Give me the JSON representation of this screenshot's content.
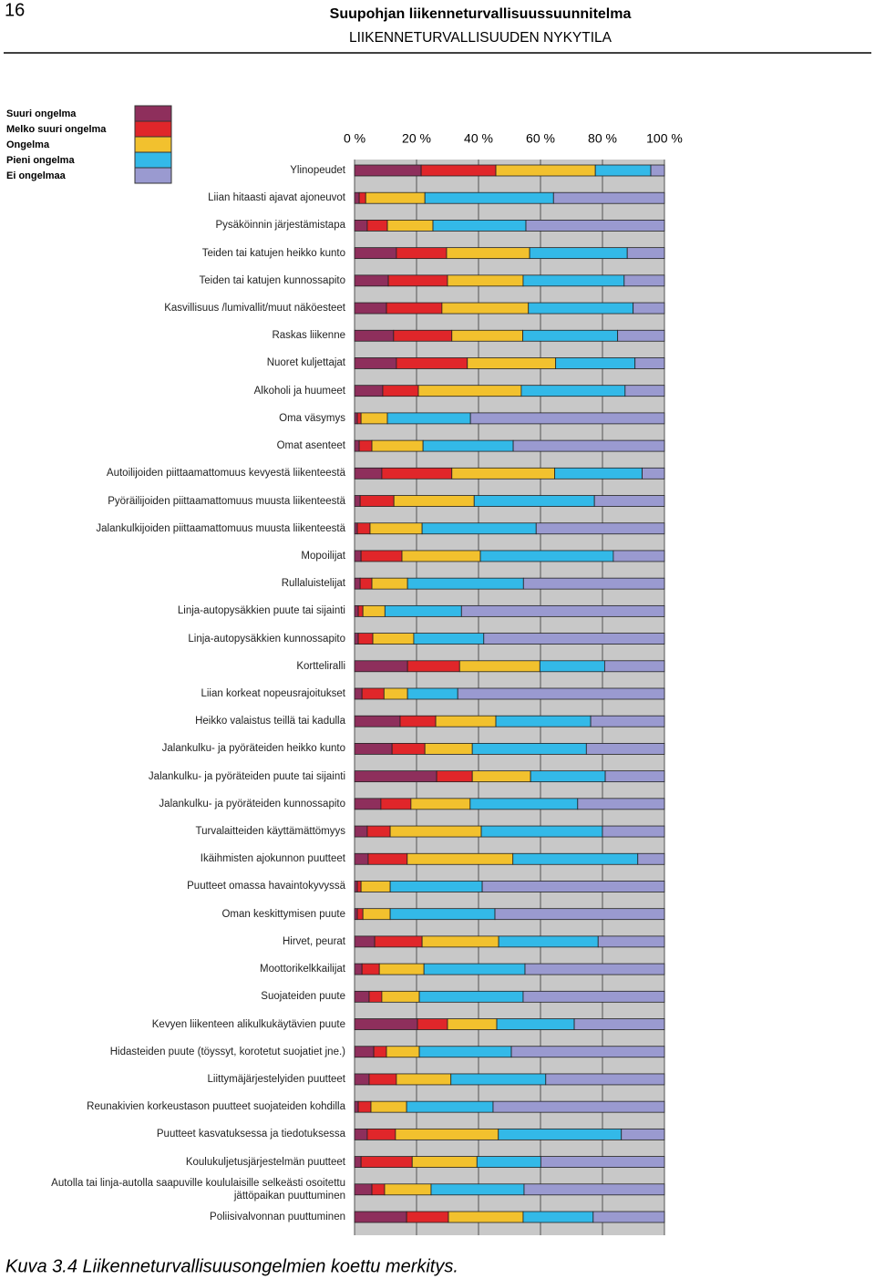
{
  "header": {
    "page_number": "16",
    "title": "Suupohjan liikenneturvallisuussuunnitelma",
    "subtitle": "LIIKENNETURVALLISUUDEN NYKYTILA"
  },
  "caption": "Kuva 3.4 Liikenneturvallisuusongelmien koettu merkitys.",
  "chart_data": {
    "type": "stacked_bar_horizontal",
    "xlim": [
      0,
      100
    ],
    "xticks": [
      {
        "value": 0,
        "label": "0 %"
      },
      {
        "value": 20,
        "label": "20 %"
      },
      {
        "value": 40,
        "label": "40 %"
      },
      {
        "value": 60,
        "label": "60 %"
      },
      {
        "value": 80,
        "label": "80 %"
      },
      {
        "value": 100,
        "label": "100 %"
      }
    ],
    "grid": true,
    "legend": "top-left",
    "categories": [
      "Ylinopeudet",
      "Liian hitaasti ajavat ajoneuvot",
      "Pysäköinnin järjestämistapa",
      "Teiden tai katujen heikko kunto",
      "Teiden tai katujen kunnossapito",
      "Kasvillisuus /lumivallit/muut näköesteet",
      "Raskas liikenne",
      "Nuoret kuljettajat",
      "Alkoholi ja huumeet",
      "Oma väsymys",
      "Omat asenteet",
      "Autoilijoiden piittaamattomuus kevyestä liikenteestä",
      "Pyöräilijoiden piittaamattomuus muusta liikenteestä",
      "Jalankulkijoiden piittaamattomuus  muusta liikenteestä",
      "Mopoilijat",
      "Rullaluistelijat",
      "Linja-autopysäkkien puute tai sijainti",
      "Linja-autopysäkkien kunnossapito",
      "Kortteliralli",
      "Liian korkeat nopeusrajoitukset",
      "Heikko valaistus teillä tai kadulla",
      "Jalankulku- ja pyöräteiden heikko kunto",
      "Jalankulku- ja pyöräteiden puute tai sijainti",
      "Jalankulku- ja pyöräteiden kunnossapito",
      "Turvalaitteiden käyttämättömyys",
      "Ikäihmisten ajokunnon puutteet",
      "Puutteet omassa havaintokyvyssä",
      "Oman keskittymisen puute",
      "Hirvet, peurat",
      "Moottorikelkkailijat",
      "Suojateiden puute",
      "Kevyen liikenteen alikulkukäytävien puute",
      "Hidasteiden puute (töyssyt, korotetut suojatiet jne.)",
      "Liittymäjärjestelyiden puutteet",
      "Reunakivien korkeustason puutteet suojateiden kohdilla",
      "Puutteet kasvatuksessa ja tiedotuksessa",
      "Koulukuljetusjärjestelmän puutteet",
      "Autolla tai linja-autolla saapuville koululaisille selkeästi osoitettu jättöpaikan puuttuminen",
      "Poliisivalvonnan puuttuminen"
    ],
    "series": [
      {
        "name": "Suuri ongelma",
        "color": "#8e2f5c",
        "values": [
          21.5,
          1.5,
          4.1,
          13.5,
          10.9,
          10.3,
          12.6,
          13.5,
          9.1,
          0.9,
          1.5,
          8.8,
          1.8,
          0.9,
          2.1,
          1.8,
          1.2,
          1.2,
          17.1,
          2.4,
          14.7,
          12.1,
          26.5,
          8.5,
          4.1,
          4.4,
          0.9,
          0.9,
          6.5,
          2.4,
          4.7,
          20.3,
          6.2,
          4.7,
          1.2,
          4.1,
          2.1,
          5.6,
          16.8
        ]
      },
      {
        "name": "Melko suuri ongelma",
        "color": "#e0262a",
        "values": [
          24.1,
          2.1,
          6.5,
          16.2,
          19.1,
          17.9,
          18.8,
          22.9,
          11.5,
          1.2,
          4.1,
          22.6,
          10.9,
          4.1,
          13.2,
          3.8,
          1.5,
          4.7,
          16.8,
          7.1,
          11.5,
          10.6,
          11.5,
          9.7,
          7.4,
          12.6,
          1.2,
          1.8,
          15.3,
          5.6,
          4.1,
          9.7,
          4.1,
          8.8,
          4.1,
          9.1,
          16.5,
          4.1,
          13.5
        ]
      },
      {
        "name": "Ongelma",
        "color": "#f2c12e",
        "values": [
          32.1,
          19.1,
          14.7,
          26.8,
          24.4,
          27.9,
          22.9,
          28.5,
          33.2,
          8.5,
          16.5,
          33.2,
          25.9,
          16.8,
          25.3,
          11.5,
          7.1,
          13.2,
          25.9,
          7.6,
          19.4,
          15.3,
          18.8,
          19.1,
          29.4,
          34.1,
          9.4,
          8.8,
          24.7,
          14.4,
          12.1,
          15.9,
          10.6,
          17.6,
          11.5,
          33.2,
          20.9,
          15.0,
          24.1
        ]
      },
      {
        "name": "Pieni ongelma",
        "color": "#33b9e8",
        "values": [
          17.9,
          41.5,
          30.0,
          31.5,
          32.6,
          33.8,
          30.6,
          25.6,
          33.5,
          26.8,
          29.1,
          28.2,
          38.8,
          36.8,
          42.9,
          37.4,
          24.7,
          22.6,
          20.9,
          16.2,
          30.6,
          36.8,
          24.1,
          34.7,
          39.1,
          40.3,
          29.7,
          33.8,
          32.1,
          32.6,
          33.5,
          25.0,
          29.7,
          30.6,
          27.9,
          39.7,
          20.6,
          30.0,
          22.6
        ]
      },
      {
        "name": "Ei ongelmaa",
        "color": "#9a9ad0",
        "values": [
          4.4,
          35.8,
          44.7,
          12.0,
          13.0,
          10.1,
          15.1,
          9.5,
          12.7,
          62.6,
          48.8,
          7.2,
          22.6,
          41.4,
          16.5,
          45.5,
          65.5,
          58.3,
          19.3,
          66.7,
          23.8,
          25.2,
          19.1,
          28.0,
          20.0,
          8.6,
          58.8,
          54.7,
          21.4,
          45.0,
          45.6,
          29.1,
          49.4,
          38.3,
          55.3,
          13.9,
          39.9,
          45.3,
          23.0
        ]
      }
    ]
  }
}
